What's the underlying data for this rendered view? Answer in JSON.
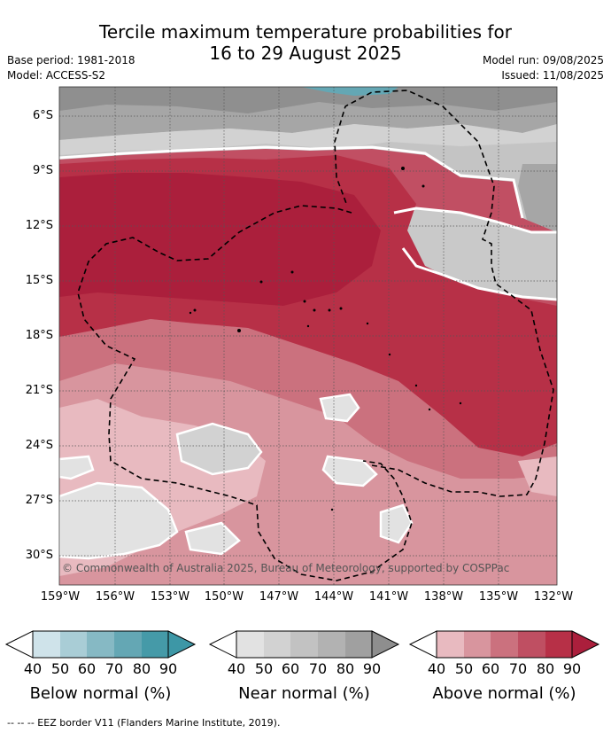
{
  "title_line1": "Tercile maximum temperature probabilities for",
  "title_line2": "16 to 29 August 2025",
  "base_period": "Base period: 1981-2018",
  "model": "Model: ACCESS-S2",
  "model_run": "Model run: 09/08/2025",
  "issued": "Issued: 11/08/2025",
  "copyright": "© Commonwealth of Australia 2025, Bureau of Meteorology, supported by COSPPac",
  "footnote": "--  --  -- EEZ border V11 (Flanders Marine Institute, 2019).",
  "lat_ticks": [
    "6°S",
    "9°S",
    "12°S",
    "15°S",
    "18°S",
    "21°S",
    "24°S",
    "27°S",
    "30°S"
  ],
  "lon_ticks": [
    "159°W",
    "156°W",
    "153°W",
    "150°W",
    "147°W",
    "144°W",
    "141°W",
    "138°W",
    "135°W",
    "132°W"
  ],
  "legends": [
    {
      "title": "Below normal (%)",
      "ticks": [
        "40",
        "50",
        "60",
        "70",
        "80",
        "90"
      ],
      "colors": [
        "#cfe3ea",
        "#a9cdd6",
        "#86b9c4",
        "#64a7b4",
        "#459aa8"
      ],
      "arrow": "#3d97a6"
    },
    {
      "title": "Near normal (%)",
      "ticks": [
        "40",
        "50",
        "60",
        "70",
        "80",
        "90"
      ],
      "colors": [
        "#e2e2e2",
        "#d2d2d2",
        "#c2c2c2",
        "#b2b2b2",
        "#a0a0a0"
      ],
      "arrow": "#8e8e8e"
    },
    {
      "title": "Above normal (%)",
      "ticks": [
        "40",
        "50",
        "60",
        "70",
        "80",
        "90"
      ],
      "colors": [
        "#e8bac0",
        "#d8959e",
        "#cb717e",
        "#bf4f62",
        "#b73047"
      ],
      "arrow": "#ab1f3c"
    }
  ]
}
